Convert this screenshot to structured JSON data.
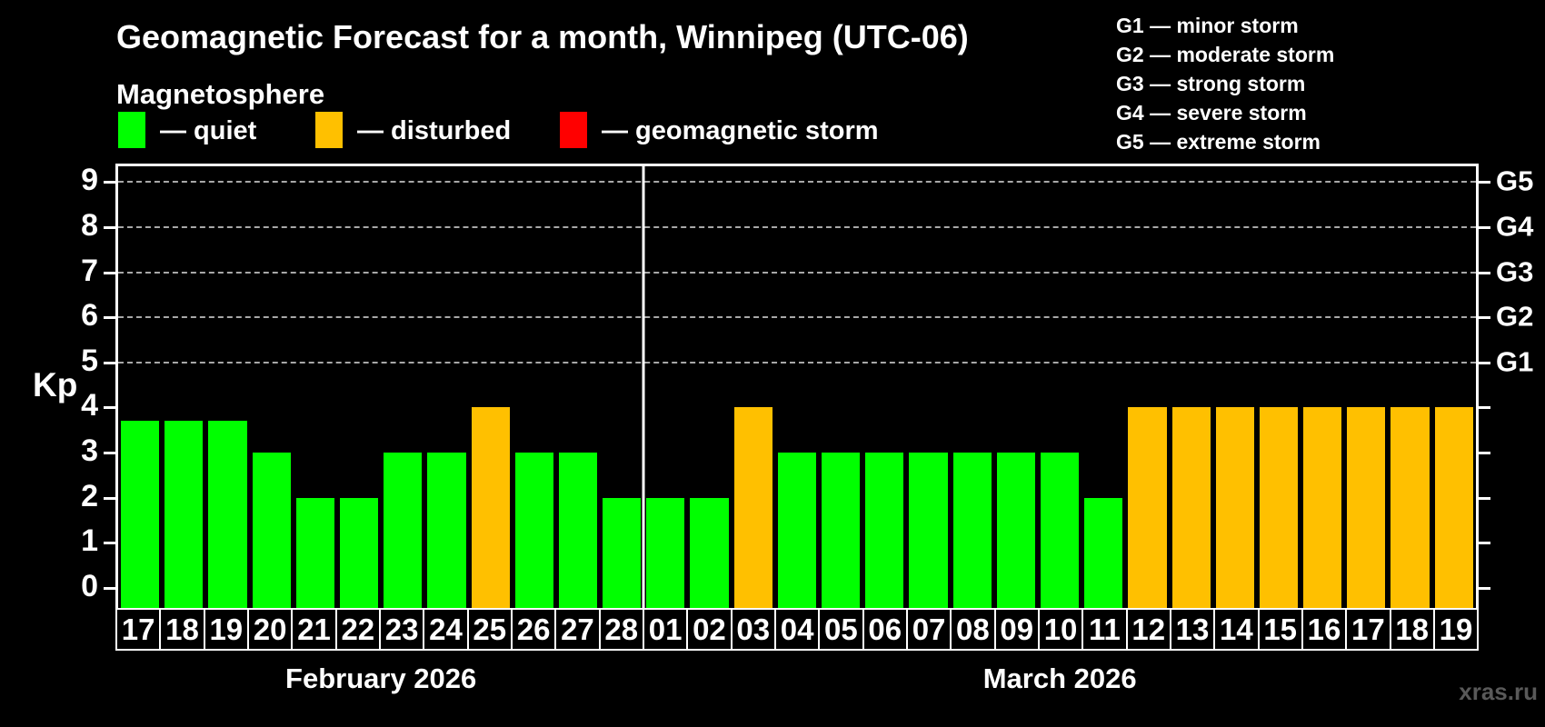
{
  "title": "Geomagnetic Forecast for a month, Winnipeg (UTC-06)",
  "subtitle": "Magnetosphere",
  "legend": {
    "items": [
      {
        "key": "quiet",
        "label": "— quiet",
        "color": "#00ff00",
        "x": 130
      },
      {
        "key": "disturbed",
        "label": "— disturbed",
        "color": "#ffc000",
        "x": 347
      },
      {
        "key": "storm",
        "label": "— geomagnetic storm",
        "color": "#ff0000",
        "x": 616
      }
    ]
  },
  "storm_scale_legend": [
    "G1 — minor storm",
    "G2 — moderate storm",
    "G3 — strong storm",
    "G4 — severe storm",
    "G5 — extreme storm"
  ],
  "watermark": "xras.ru",
  "chart_data": {
    "type": "bar",
    "title": "Geomagnetic Forecast for a month, Winnipeg (UTC-06)",
    "ylabel": "Kp",
    "ylim": [
      -0.45,
      9.35
    ],
    "yticks": [
      0,
      1,
      2,
      3,
      4,
      5,
      6,
      7,
      8,
      9
    ],
    "gridlines": [
      5,
      6,
      7,
      8,
      9
    ],
    "grid_style": "dashed",
    "right_axis_labels": [
      {
        "value": 5,
        "label": "G1"
      },
      {
        "value": 6,
        "label": "G2"
      },
      {
        "value": 7,
        "label": "G3"
      },
      {
        "value": 8,
        "label": "G4"
      },
      {
        "value": 9,
        "label": "G5"
      }
    ],
    "months": [
      {
        "label": "February 2026",
        "days": 12
      },
      {
        "label": "March 2026",
        "days": 19
      }
    ],
    "categories": [
      "17",
      "18",
      "19",
      "20",
      "21",
      "22",
      "23",
      "24",
      "25",
      "26",
      "27",
      "28",
      "01",
      "02",
      "03",
      "04",
      "05",
      "06",
      "07",
      "08",
      "09",
      "10",
      "11",
      "12",
      "13",
      "14",
      "15",
      "16",
      "17",
      "18",
      "19"
    ],
    "values": [
      3.7,
      3.7,
      3.7,
      3,
      2,
      2,
      3,
      3,
      4,
      3,
      3,
      2,
      2,
      2,
      4,
      3,
      3,
      3,
      3,
      3,
      3,
      3,
      2,
      4,
      4,
      4,
      4,
      4,
      4,
      4,
      4
    ],
    "status": [
      "quiet",
      "quiet",
      "quiet",
      "quiet",
      "quiet",
      "quiet",
      "quiet",
      "quiet",
      "disturbed",
      "quiet",
      "quiet",
      "quiet",
      "quiet",
      "quiet",
      "disturbed",
      "quiet",
      "quiet",
      "quiet",
      "quiet",
      "quiet",
      "quiet",
      "quiet",
      "quiet",
      "disturbed",
      "disturbed",
      "disturbed",
      "disturbed",
      "disturbed",
      "disturbed",
      "disturbed",
      "disturbed"
    ],
    "series_colors": {
      "quiet": "#00ff00",
      "disturbed": "#ffc000",
      "storm": "#ff0000"
    },
    "background": "#000000",
    "legend_position": "top"
  }
}
